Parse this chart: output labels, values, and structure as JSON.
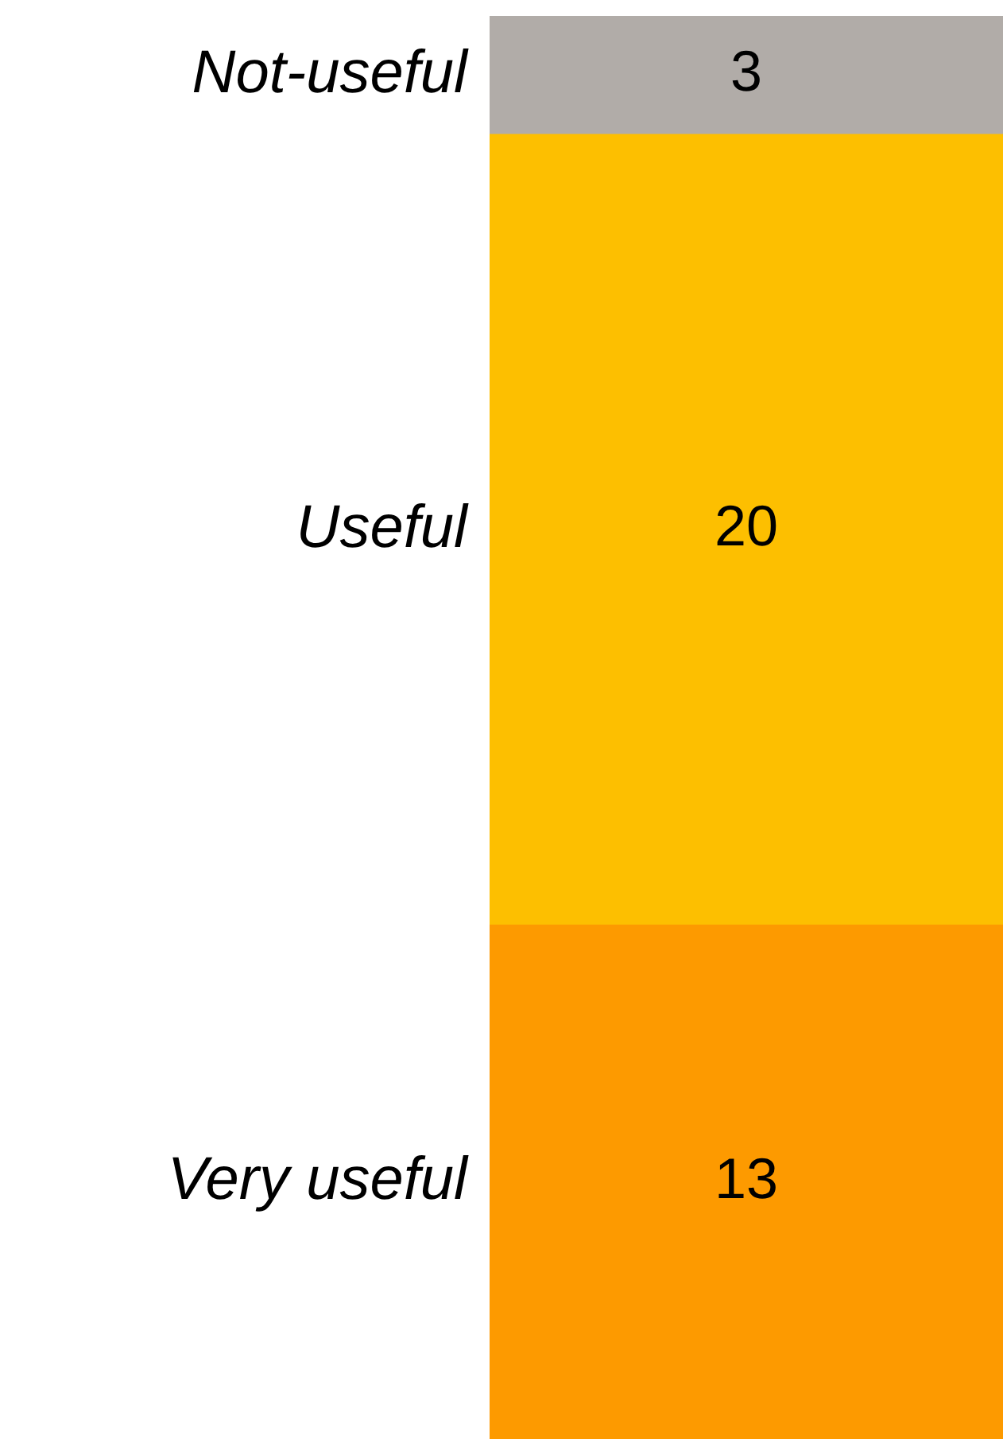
{
  "chart_data": {
    "type": "bar",
    "stacked": true,
    "categories": [
      null
    ],
    "series": [
      {
        "name": "Very useful",
        "color": "#fd9a00",
        "values": [
          13
        ]
      },
      {
        "name": "Useful",
        "color": "#fdbf00",
        "values": [
          20
        ]
      },
      {
        "name": "Not-useful",
        "color": "#b1aca8",
        "values": [
          3
        ]
      }
    ],
    "data_labels": true,
    "legend": false
  }
}
